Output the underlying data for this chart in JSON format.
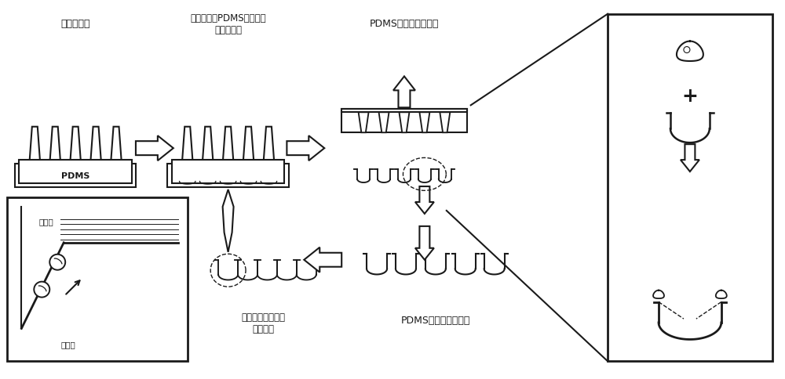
{
  "bg_color": "#ffffff",
  "line_color": "#1a1a1a",
  "labels": {
    "label1": "圆台针阵列",
    "label2": "毛细管力使PDMS溶液沿圆\n台针壁上升",
    "label3": "PDMS脱模、固化成型",
    "label4": "激光加工选择性去\n除亲水层",
    "label5": "PDMS表面亲水化处理",
    "label6_hydrophilic": "亲水面",
    "label7_hydrophobic": "疏水面",
    "pdms": "PDMS"
  },
  "fig_w": 10.0,
  "fig_h": 4.85,
  "dpi": 100
}
